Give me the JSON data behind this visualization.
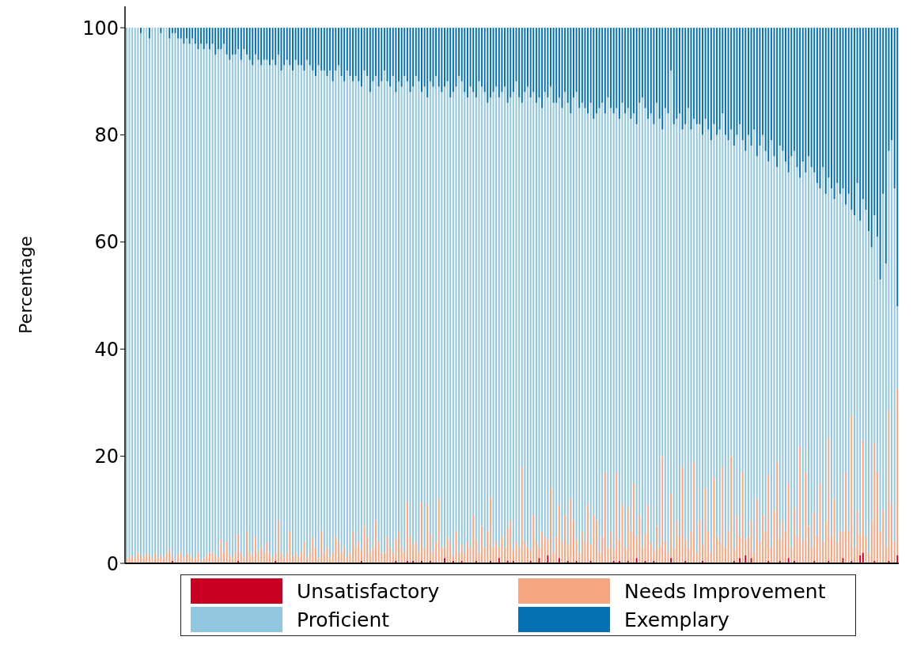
{
  "chart_data": {
    "type": "bar",
    "stacked": true,
    "ylabel": "Percentage",
    "ylim": [
      0,
      104
    ],
    "yticks": [
      0,
      20,
      40,
      60,
      80,
      100
    ],
    "tick_labels": "y",
    "legend": "bottom",
    "categories": [
      null,
      null,
      null,
      null,
      null,
      null,
      null,
      null,
      null,
      null,
      null,
      null,
      null,
      null,
      null,
      null,
      null,
      null,
      null,
      null,
      null,
      null,
      null,
      null,
      null,
      null,
      null,
      null,
      null,
      null,
      null,
      null,
      null,
      null,
      null,
      null,
      null,
      null,
      null,
      null,
      null,
      null,
      null,
      null,
      null,
      null,
      null,
      null,
      null,
      null,
      null,
      null,
      null,
      null,
      null,
      null,
      null,
      null,
      null,
      null,
      null,
      null,
      null,
      null,
      null,
      null,
      null,
      null,
      null,
      null,
      null,
      null,
      null,
      null,
      null,
      null,
      null,
      null,
      null,
      null,
      null,
      null,
      null,
      null,
      null,
      null,
      null,
      null,
      null,
      null,
      null,
      null,
      null,
      null,
      null,
      null,
      null,
      null,
      null,
      null,
      null,
      null,
      null,
      null,
      null,
      null,
      null,
      null,
      null,
      null,
      null,
      null,
      null,
      null,
      null,
      null,
      null,
      null,
      null,
      null,
      null,
      null,
      null,
      null,
      null,
      null,
      null,
      null,
      null,
      null,
      null,
      null,
      null,
      null,
      null,
      null,
      null,
      null,
      null,
      null,
      null,
      null,
      null,
      null,
      null,
      null,
      null,
      null,
      null,
      null,
      null,
      null,
      null,
      null,
      null,
      null,
      null,
      null,
      null,
      null,
      null,
      null,
      null,
      null,
      null,
      null,
      null,
      null,
      null,
      null,
      null,
      null,
      null,
      null,
      null,
      null,
      null,
      null,
      null,
      null,
      null,
      null,
      null,
      null,
      null,
      null,
      null,
      null,
      null,
      null,
      null,
      null,
      null,
      null,
      null,
      null,
      null,
      null,
      null,
      null,
      null,
      null,
      null,
      null,
      null,
      null,
      null,
      null,
      null,
      null,
      null,
      null,
      null,
      null,
      null,
      null,
      null,
      null,
      null,
      null,
      null,
      null,
      null,
      null,
      null,
      null,
      null,
      null,
      null,
      null,
      null,
      null,
      null,
      null,
      null,
      null,
      null,
      null,
      null,
      null,
      null,
      null,
      null,
      null,
      null,
      null,
      null,
      null,
      null,
      null,
      null,
      null,
      null,
      null,
      null,
      null,
      null,
      null,
      null,
      null,
      null,
      null,
      null,
      null,
      null,
      null,
      null,
      null,
      null,
      null
    ],
    "series": [
      {
        "name": "Unsatisfactory",
        "color": "#ca0020",
        "values": [
          0,
          0,
          0,
          0,
          0,
          0,
          0,
          0,
          0,
          0,
          0,
          0,
          0,
          0,
          0,
          0,
          0.5,
          0,
          0,
          0,
          0,
          0,
          0,
          0,
          0,
          0,
          0,
          0,
          0,
          0,
          0,
          0,
          0,
          0,
          0,
          0,
          0,
          0,
          0,
          0.5,
          0,
          0,
          0,
          0,
          0,
          0,
          0,
          0,
          0,
          0,
          0,
          0,
          0.5,
          0,
          0,
          0,
          0,
          0,
          0,
          0,
          0,
          0,
          0,
          0,
          0,
          0,
          0,
          0,
          0,
          0,
          0,
          0,
          0,
          0,
          0,
          0,
          0,
          0,
          0,
          0,
          0,
          0,
          0.5,
          0,
          0,
          0,
          0,
          0,
          0,
          0,
          0,
          0,
          0,
          0,
          0.5,
          0,
          0,
          0,
          0.5,
          0,
          0.5,
          0,
          0,
          0.5,
          0,
          0,
          0.5,
          0,
          0,
          0,
          0,
          1,
          0,
          0,
          0.5,
          0,
          0,
          0.5,
          0,
          0,
          0,
          0,
          0.5,
          0,
          0,
          0,
          0,
          0.5,
          0,
          0,
          1,
          0,
          0,
          0.5,
          0,
          0.5,
          0,
          0,
          0,
          0,
          0,
          0.5,
          0,
          0,
          1,
          0,
          0,
          1.5,
          0,
          0,
          0,
          1,
          0,
          0,
          0.5,
          0,
          0,
          0.5,
          0,
          0,
          0,
          0,
          0.5,
          0,
          0,
          0,
          0,
          0,
          0,
          0,
          0.5,
          0,
          0.5,
          0,
          0,
          0.5,
          0,
          0,
          1,
          0,
          0,
          0.5,
          0,
          0,
          0.5,
          0,
          0,
          0,
          0,
          0,
          1,
          0,
          0,
          0,
          0,
          0.5,
          0,
          0,
          0,
          0,
          0,
          0.5,
          0,
          0,
          0,
          0,
          0,
          0,
          0,
          0,
          0,
          0,
          0.5,
          0,
          1,
          0,
          1.5,
          0,
          1,
          0,
          0,
          0,
          0,
          0,
          0.5,
          0,
          0,
          0,
          0.5,
          0,
          0,
          1,
          0,
          0.5,
          0,
          0,
          0,
          0,
          0,
          0,
          0.5,
          0,
          0,
          0,
          0,
          0.5,
          0,
          0,
          0,
          0,
          1,
          0,
          0,
          0.5,
          0,
          0,
          1.5,
          2,
          0,
          0,
          0,
          0.5,
          0,
          0,
          0,
          0,
          0.5,
          0,
          0,
          1.5
        ]
      },
      {
        "name": "Needs Improvement",
        "color": "#f4a582",
        "values": [
          1,
          1,
          1.5,
          1,
          2,
          1.5,
          1,
          2,
          1.5,
          1,
          2,
          1,
          1.5,
          1,
          2,
          2.5,
          1,
          0.5,
          1.5,
          2,
          1,
          2,
          1.5,
          1,
          1,
          2,
          0.5,
          1,
          1.5,
          2,
          2,
          1.5,
          1,
          4.5,
          2,
          4,
          1.5,
          1,
          2,
          5,
          2,
          1,
          6,
          2,
          1.5,
          5,
          2,
          3,
          2,
          4,
          2,
          1,
          1.5,
          8,
          2,
          1,
          2,
          6,
          1.5,
          2,
          1,
          2,
          4,
          1,
          2,
          5,
          3,
          1,
          6,
          2,
          3,
          1,
          2,
          5,
          4,
          2,
          3,
          1,
          2,
          6,
          3,
          4,
          2,
          7,
          5,
          2,
          3,
          8,
          4,
          2,
          2,
          5,
          3,
          2,
          4,
          6,
          3,
          2,
          11,
          5,
          3,
          4,
          2,
          11,
          3,
          11,
          5,
          2,
          4,
          12,
          3,
          2,
          5,
          4,
          1,
          6,
          2,
          3,
          2,
          4,
          3,
          9,
          4,
          2,
          7,
          3,
          6,
          12,
          3,
          4,
          2,
          5,
          3,
          6,
          8,
          2,
          4,
          3,
          18,
          4,
          3,
          2,
          9,
          4,
          2,
          6,
          5,
          3,
          14,
          2,
          5,
          10,
          4,
          9,
          3,
          12,
          8,
          4,
          2,
          6,
          4,
          11,
          3,
          9,
          8,
          2,
          5,
          17,
          3,
          6,
          2,
          17,
          4,
          11,
          3,
          10,
          6,
          15,
          4,
          9,
          3,
          5,
          11,
          4,
          2,
          7,
          3,
          20,
          4,
          2,
          12,
          3,
          8,
          5,
          18,
          4,
          3,
          6,
          19,
          2,
          8,
          3,
          14,
          6,
          2,
          16,
          5,
          4,
          18,
          3,
          6,
          20,
          2,
          9,
          4,
          17,
          3,
          5,
          7,
          2,
          12,
          4,
          9,
          6,
          16,
          3,
          10,
          19,
          4,
          8,
          6,
          14,
          3,
          10,
          5,
          22,
          4,
          17,
          7,
          3,
          9,
          5,
          15,
          4,
          8,
          23,
          5,
          12,
          4,
          6,
          5,
          17,
          6,
          27,
          3,
          10,
          4,
          21,
          5,
          2,
          8,
          22,
          17,
          6,
          10,
          3,
          28,
          11,
          4,
          31
        ]
      },
      {
        "name": "Proficient",
        "color": "#92c5de",
        "values": [
          99,
          99,
          98.5,
          99,
          98,
          97.5,
          99,
          98,
          96.5,
          99,
          98,
          99,
          97.5,
          99,
          98,
          95.5,
          97.5,
          98.5,
          96.5,
          96,
          96,
          96,
          95.5,
          97,
          96,
          94,
          96.5,
          95,
          95.5,
          94,
          95,
          93.5,
          95,
          91.5,
          95,
          91,
          92.5,
          94,
          93,
          90.5,
          92,
          95,
          89,
          92,
          91.5,
          90,
          92,
          90,
          92,
          90,
          91,
          93,
          91,
          87,
          90,
          92,
          92,
          87,
          90.5,
          92,
          92,
          91,
          88,
          93,
          91,
          87,
          88,
          92,
          86,
          90,
          88,
          91,
          88,
          87,
          89,
          89,
          87,
          91,
          89,
          84,
          88,
          86,
          86.5,
          85,
          86,
          86,
          87,
          83,
          85,
          88,
          90,
          85,
          86,
          89,
          83.5,
          84,
          86,
          89,
          78.5,
          83,
          85.5,
          87,
          88,
          76.5,
          86,
          76,
          84.5,
          87,
          87,
          77,
          85,
          86,
          85,
          83,
          86.5,
          83,
          89,
          86.5,
          86,
          83,
          86,
          79,
          82.5,
          88,
          82,
          85,
          80,
          74.5,
          85,
          85,
          84,
          83,
          86,
          79.5,
          79,
          85.5,
          86,
          84,
          68,
          84,
          86,
          84.5,
          79,
          82,
          84,
          79,
          83,
          82.5,
          75,
          84,
          81,
          76,
          81,
          79,
          82.5,
          72,
          79,
          83.5,
          83,
          80,
          81,
          73,
          82.5,
          74,
          76,
          83,
          81,
          67,
          84,
          79,
          81.5,
          68,
          78.5,
          75,
          81,
          74.5,
          77,
          69,
          77,
          77,
          84,
          79.5,
          72,
          80,
          79.5,
          79,
          80,
          61,
          81,
          82,
          79,
          79,
          75,
          79,
          63,
          77.5,
          82,
          75,
          64,
          80,
          74,
          76.5,
          69,
          75,
          77,
          66,
          75,
          77,
          66,
          77,
          73,
          61,
          75.5,
          71,
          77,
          62,
          72.5,
          75,
          70,
          79,
          64,
          74,
          71,
          71,
          58.5,
          76,
          66,
          55,
          73.5,
          69,
          69,
          58,
          73,
          66.5,
          69,
          50,
          71,
          56,
          69,
          71,
          63.5,
          66,
          55,
          70,
          61,
          48.5,
          65,
          56,
          67,
          63,
          64,
          50,
          63,
          38.5,
          62,
          61,
          58.5,
          45,
          61,
          60,
          51,
          42.5,
          44,
          47,
          59,
          53,
          48.5,
          68,
          66,
          15.5
        ]
      },
      {
        "name": "Exemplary",
        "color": "#0571b0",
        "values": [
          0,
          0,
          0,
          0,
          0,
          1,
          0,
          0,
          2,
          0,
          0,
          0,
          1,
          0,
          0,
          2,
          1,
          1,
          2,
          2,
          3,
          2,
          3,
          2,
          3,
          4,
          3,
          4,
          3,
          4,
          3,
          5,
          4,
          4,
          3,
          5,
          6,
          5,
          5,
          4,
          6,
          4,
          5,
          6,
          7,
          5,
          6,
          7,
          6,
          6,
          7,
          6,
          7,
          5,
          8,
          7,
          6,
          7,
          8,
          6,
          7,
          7,
          8,
          6,
          7,
          8,
          9,
          7,
          8,
          8,
          9,
          8,
          10,
          8,
          7,
          9,
          10,
          8,
          9,
          10,
          9,
          10,
          11,
          8,
          9,
          12,
          10,
          9,
          11,
          10,
          8,
          10,
          11,
          9,
          12,
          10,
          11,
          9,
          10,
          12,
          11,
          9,
          10,
          12,
          11,
          13,
          10,
          11,
          9,
          11,
          12,
          11,
          10,
          13,
          12,
          11,
          9,
          10,
          12,
          13,
          11,
          12,
          13,
          10,
          11,
          12,
          14,
          13,
          12,
          11,
          13,
          12,
          11,
          14,
          13,
          12,
          10,
          13,
          14,
          12,
          11,
          13,
          12,
          14,
          13,
          15,
          12,
          13,
          11,
          14,
          14,
          13,
          15,
          12,
          14,
          16,
          13,
          12,
          15,
          14,
          15,
          16,
          14,
          17,
          16,
          15,
          14,
          16,
          13,
          15,
          16,
          15,
          17,
          14,
          16,
          15,
          17,
          16,
          18,
          14,
          13,
          15,
          17,
          16,
          18,
          14,
          17,
          19,
          15,
          16,
          8,
          18,
          17,
          16,
          19,
          18,
          15,
          19,
          17,
          18,
          18,
          20,
          17,
          19,
          21,
          18,
          20,
          19,
          16,
          20,
          21,
          19,
          22,
          20,
          18,
          21,
          23,
          20,
          22,
          19,
          24,
          22,
          20,
          23,
          25,
          21,
          24,
          26,
          22,
          23,
          25,
          27,
          24,
          23,
          26,
          28,
          25,
          27,
          24,
          26,
          27,
          29,
          30,
          26,
          31,
          28,
          30,
          32,
          29,
          31,
          30,
          33,
          31,
          34,
          35,
          29,
          36,
          32,
          34,
          38,
          41,
          35,
          39,
          47,
          31,
          44,
          23,
          21,
          30,
          52
        ]
      }
    ]
  }
}
